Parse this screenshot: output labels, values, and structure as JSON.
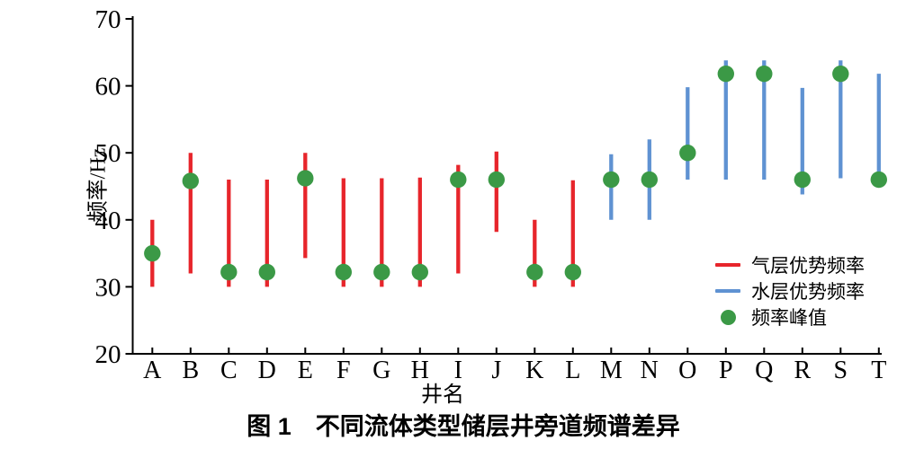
{
  "figure": {
    "title": "图 1　不同流体类型储层井旁道频谱差异"
  },
  "chart_data": {
    "type": "range-dot",
    "title": "图 1　不同流体类型储层井旁道频谱差异",
    "xlabel": "井名",
    "ylabel": "频率/Hz",
    "ylim": [
      20,
      70
    ],
    "yticks": [
      20,
      30,
      40,
      50,
      60,
      70
    ],
    "grid": false,
    "categories": [
      "A",
      "B",
      "C",
      "D",
      "E",
      "F",
      "G",
      "H",
      "I",
      "J",
      "K",
      "L",
      "M",
      "N",
      "O",
      "P",
      "Q",
      "R",
      "S",
      "T"
    ],
    "wells": [
      {
        "name": "A",
        "fluid": "gas",
        "range": [
          30,
          40
        ],
        "peak": 35
      },
      {
        "name": "B",
        "fluid": "gas",
        "range": [
          32,
          50
        ],
        "peak": 45.8
      },
      {
        "name": "C",
        "fluid": "gas",
        "range": [
          30,
          46
        ],
        "peak": 32.2
      },
      {
        "name": "D",
        "fluid": "gas",
        "range": [
          30,
          46
        ],
        "peak": 32.2
      },
      {
        "name": "E",
        "fluid": "gas",
        "range": [
          34.3,
          50
        ],
        "peak": 46.2
      },
      {
        "name": "F",
        "fluid": "gas",
        "range": [
          30,
          46.2
        ],
        "peak": 32.2
      },
      {
        "name": "G",
        "fluid": "gas",
        "range": [
          30,
          46.2
        ],
        "peak": 32.2
      },
      {
        "name": "H",
        "fluid": "gas",
        "range": [
          30,
          46.3
        ],
        "peak": 32.2
      },
      {
        "name": "I",
        "fluid": "gas",
        "range": [
          32,
          48.2
        ],
        "peak": 46
      },
      {
        "name": "J",
        "fluid": "gas",
        "range": [
          38.2,
          50.2
        ],
        "peak": 46
      },
      {
        "name": "K",
        "fluid": "gas",
        "range": [
          30,
          40
        ],
        "peak": 32.2
      },
      {
        "name": "L",
        "fluid": "gas",
        "range": [
          30,
          45.9
        ],
        "peak": 32.2
      },
      {
        "name": "M",
        "fluid": "water",
        "range": [
          40,
          49.8
        ],
        "peak": 46
      },
      {
        "name": "N",
        "fluid": "water",
        "range": [
          40,
          52
        ],
        "peak": 46
      },
      {
        "name": "O",
        "fluid": "water",
        "range": [
          46,
          59.8
        ],
        "peak": 50
      },
      {
        "name": "P",
        "fluid": "water",
        "range": [
          46,
          63.8
        ],
        "peak": 61.8
      },
      {
        "name": "Q",
        "fluid": "water",
        "range": [
          46,
          63.8
        ],
        "peak": 61.8
      },
      {
        "name": "R",
        "fluid": "water",
        "range": [
          43.8,
          59.7
        ],
        "peak": 46
      },
      {
        "name": "S",
        "fluid": "water",
        "range": [
          46.2,
          63.8
        ],
        "peak": 61.8
      },
      {
        "name": "T",
        "fluid": "water",
        "range": [
          46,
          61.8
        ],
        "peak": 46
      }
    ],
    "colors": {
      "gas": "#e7252b",
      "water": "#5f92d2",
      "peak": "#3b9946",
      "axis": "#000000"
    },
    "legend": {
      "position": "inside-lower-right",
      "items": [
        {
          "label": "气层优势频率",
          "marker": "line",
          "color": "#e7252b"
        },
        {
          "label": "水层优势频率",
          "marker": "line",
          "color": "#5f92d2"
        },
        {
          "label": "频率峰值",
          "marker": "dot",
          "color": "#3b9946"
        }
      ]
    }
  }
}
